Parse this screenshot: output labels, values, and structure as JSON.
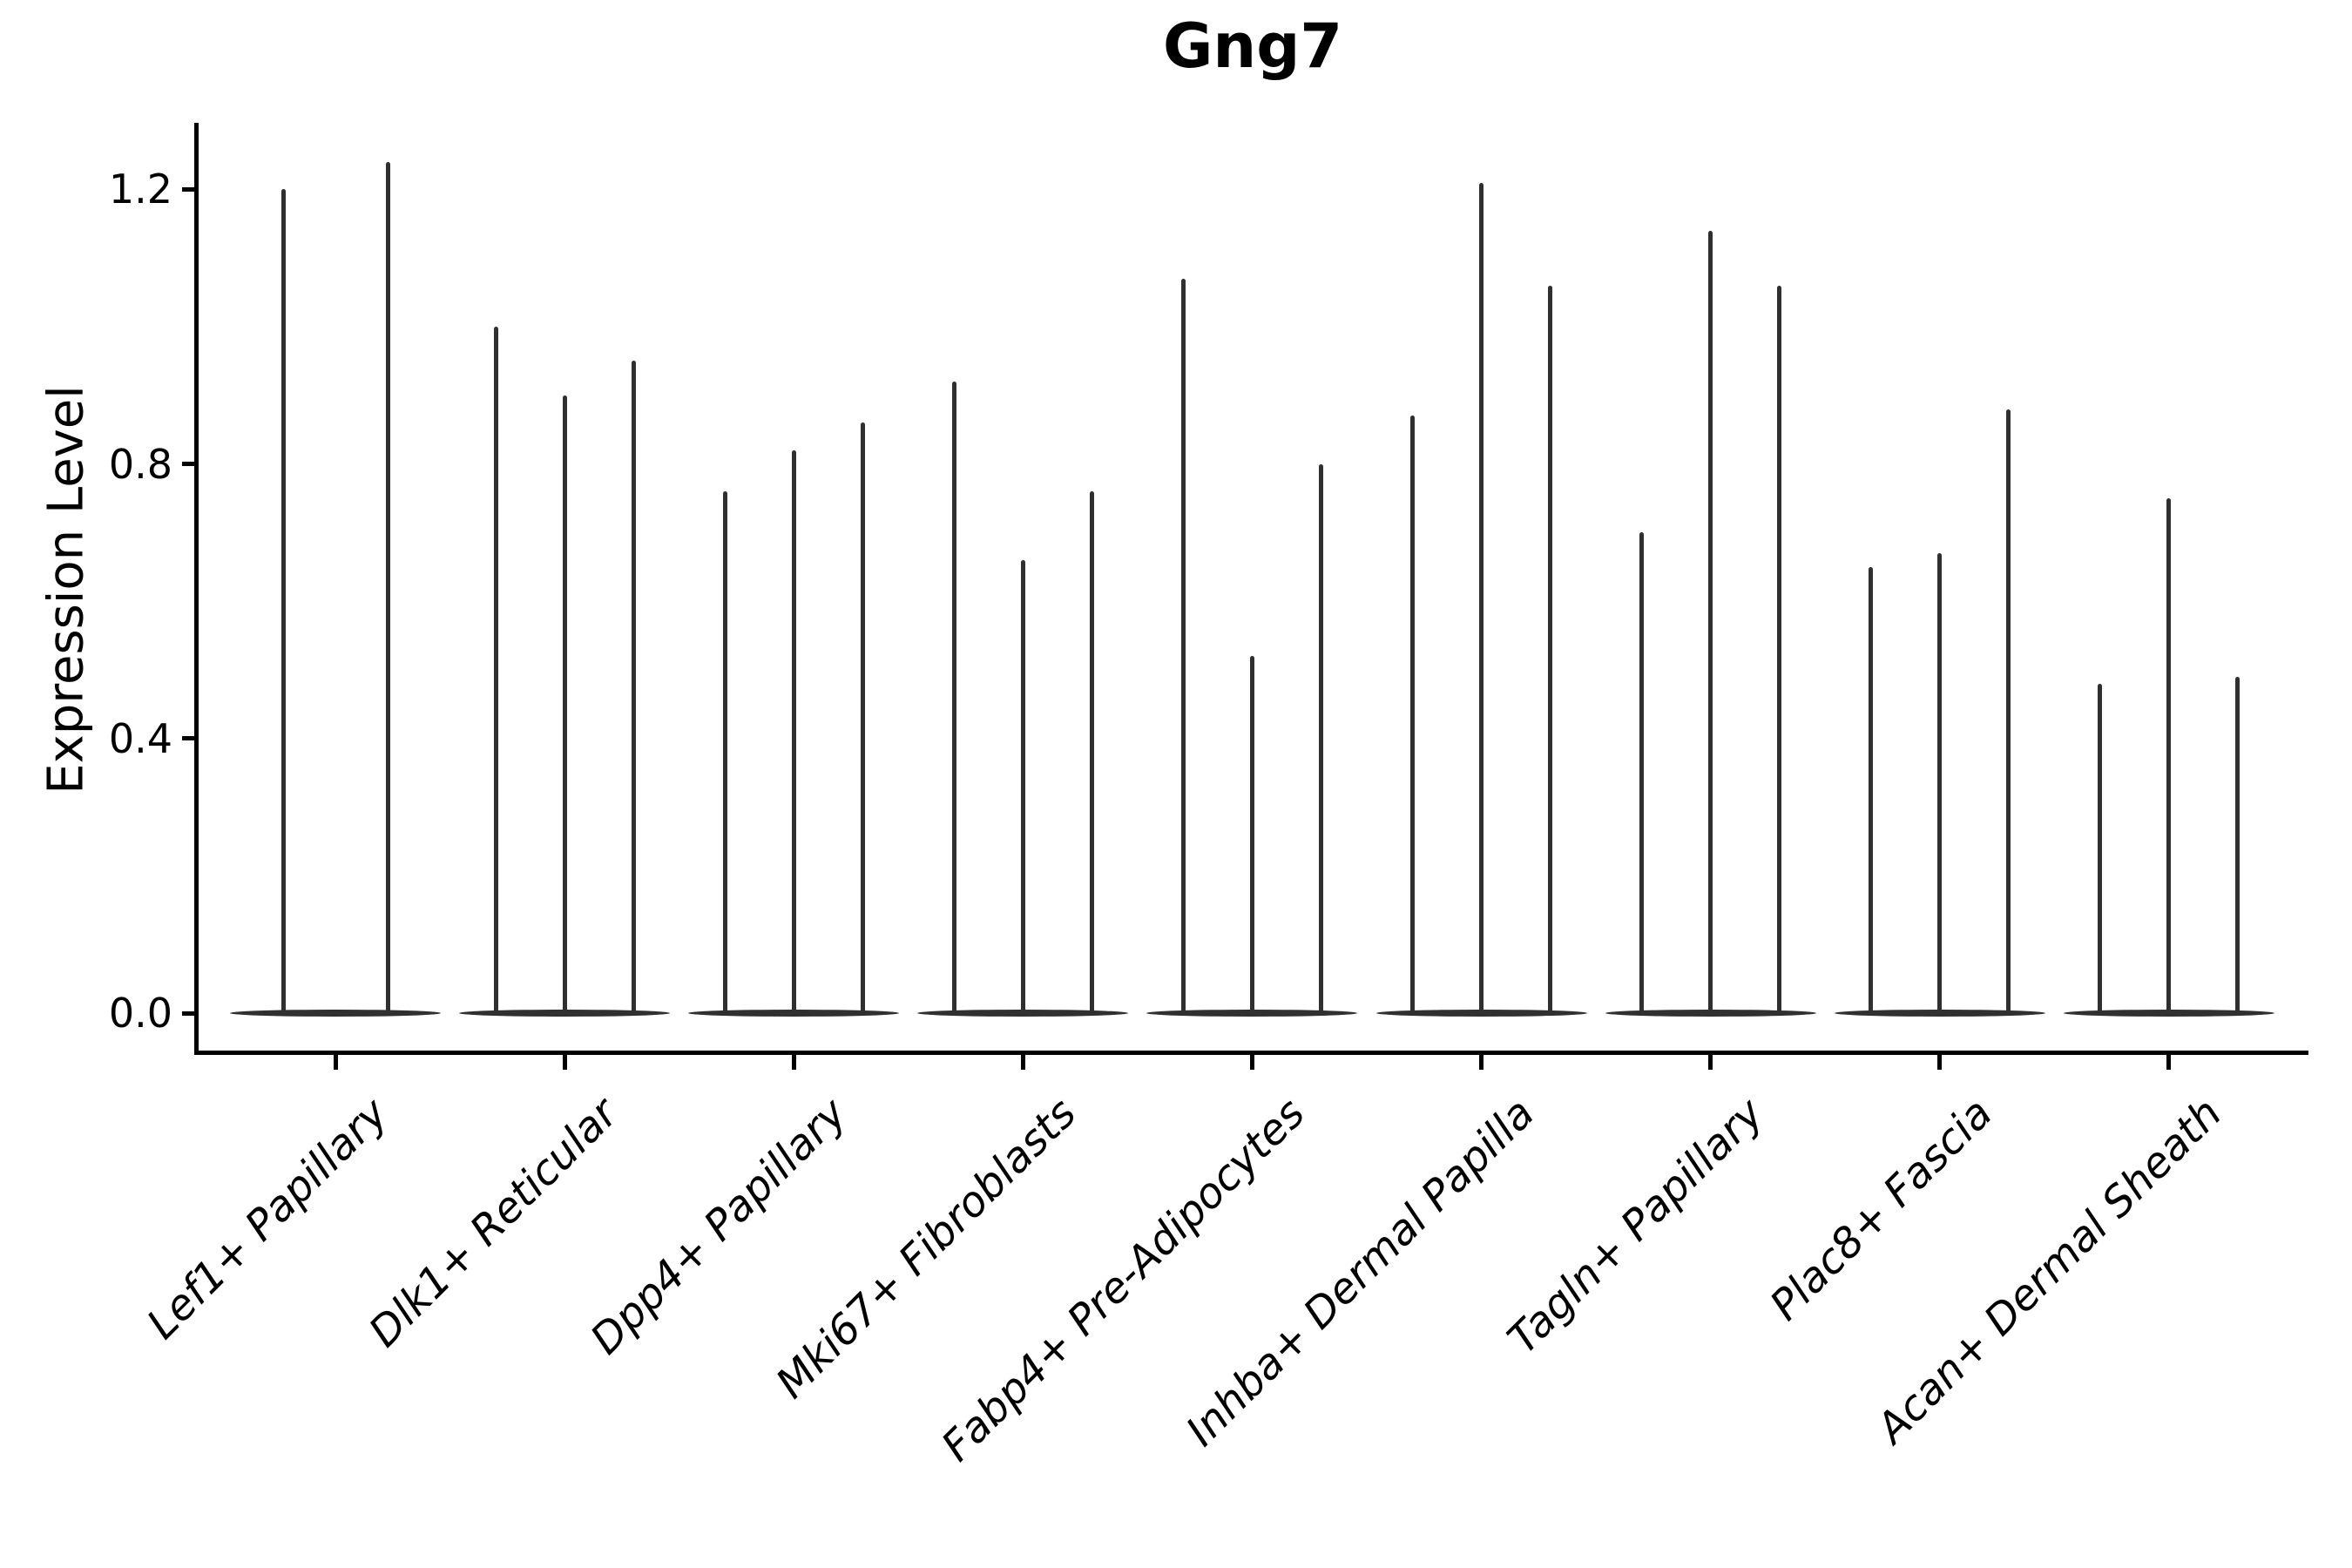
{
  "chart_data": {
    "type": "violin",
    "title": "Gng7",
    "xlabel": "",
    "ylabel": "Expression Level",
    "yticks": [
      0.0,
      0.4,
      0.8,
      1.2
    ],
    "ytick_labels": [
      "0.0",
      "0.4",
      "0.8",
      "1.2"
    ],
    "ylim": [
      -0.06,
      1.3
    ],
    "grid": false,
    "legend": null,
    "shape_note": "Each violin is a thin vertical spike rising from a wide flat density base at expression 0; spike top = max expression",
    "categories": [
      "Lef1+ Papillary",
      "Dlk1+ Reticular",
      "Dpp4+ Papillary",
      "Mki67+ Fibroblasts",
      "Fabp4+ Pre-Adipocytes",
      "Inhba+ Dermal Papilla",
      "Tagln+ Papillary",
      "Plac8+ Fascia",
      "Acan+ Dermal Sheath"
    ],
    "series": [
      {
        "category": "Lef1+ Papillary",
        "spike_max_values": [
          1.2,
          1.24
        ]
      },
      {
        "category": "Dlk1+ Reticular",
        "spike_max_values": [
          1.0,
          0.9,
          0.95
        ]
      },
      {
        "category": "Dpp4+ Papillary",
        "spike_max_values": [
          0.76,
          0.82,
          0.86
        ]
      },
      {
        "category": "Mki67+ Fibroblasts",
        "spike_max_values": [
          0.92,
          0.66,
          0.76
        ]
      },
      {
        "category": "Fabp4+ Pre-Adipocytes",
        "spike_max_values": [
          1.07,
          0.52,
          0.8
        ]
      },
      {
        "category": "Inhba+ Dermal Papilla",
        "spike_max_values": [
          0.87,
          1.21,
          1.06
        ]
      },
      {
        "category": "Tagln+ Papillary",
        "spike_max_values": [
          0.7,
          1.14,
          1.06
        ]
      },
      {
        "category": "Plac8+ Fascia",
        "spike_max_values": [
          0.65,
          0.67,
          0.88
        ]
      },
      {
        "category": "Acan+ Dermal Sheath",
        "spike_max_values": [
          0.48,
          0.75,
          0.49
        ]
      }
    ],
    "colors": {
      "violin": "#303030",
      "axis": "#000000",
      "text": "#000000",
      "background": "#ffffff"
    }
  }
}
